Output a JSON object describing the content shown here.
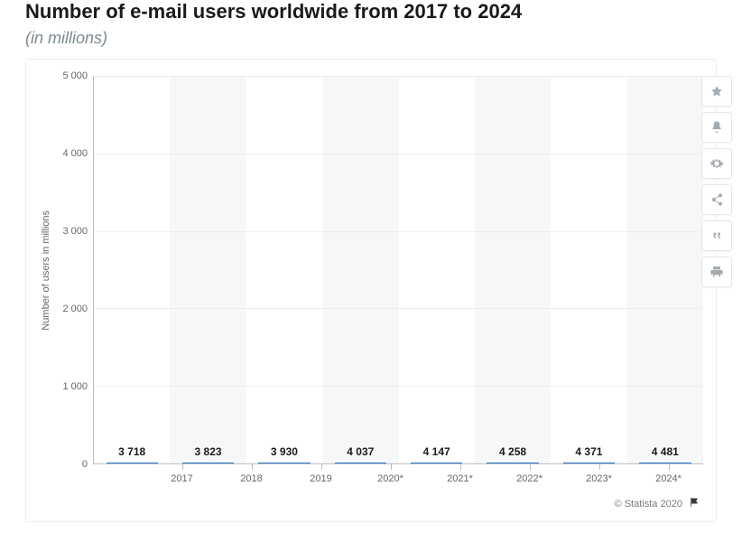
{
  "title": "Number of e-mail users worldwide from 2017 to 2024",
  "subtitle": "(in millions)",
  "attribution": "© Statista 2020",
  "chart": {
    "type": "bar",
    "ylabel": "Number of users in millions",
    "ylim": [
      0,
      5000
    ],
    "ytick_step": 1000,
    "yticks": [
      0,
      1000,
      2000,
      3000,
      4000,
      5000
    ],
    "ytick_labels": [
      "0",
      "1 000",
      "2 000",
      "3 000",
      "4 000",
      "5 000"
    ],
    "categories": [
      "2017",
      "2018",
      "2019",
      "2020*",
      "2021*",
      "2022*",
      "2023*",
      "2024*"
    ],
    "values": [
      3718,
      3823,
      3930,
      4037,
      4147,
      4258,
      4371,
      4481
    ],
    "value_labels": [
      "3 718",
      "3 823",
      "3 930",
      "4 037",
      "4 147",
      "4 258",
      "4 371",
      "4 481"
    ],
    "bar_color": "#2f7ed8",
    "bar_width_ratio": 0.68,
    "background_color": "#ffffff",
    "stripe_color": "#f6f7f8",
    "grid_color": "#eceef0",
    "axis_color": "#b8bdc2",
    "tick_font_size": 11,
    "label_font_size": 12,
    "label_font_weight": 700,
    "title_font_size": 22,
    "subtitle_font_size": 18
  },
  "toolbar": {
    "items": [
      {
        "name": "favorite",
        "icon": "star"
      },
      {
        "name": "notify",
        "icon": "bell"
      },
      {
        "name": "settings",
        "icon": "gear"
      },
      {
        "name": "share",
        "icon": "share"
      },
      {
        "name": "cite",
        "icon": "quote"
      },
      {
        "name": "print",
        "icon": "print"
      }
    ]
  }
}
